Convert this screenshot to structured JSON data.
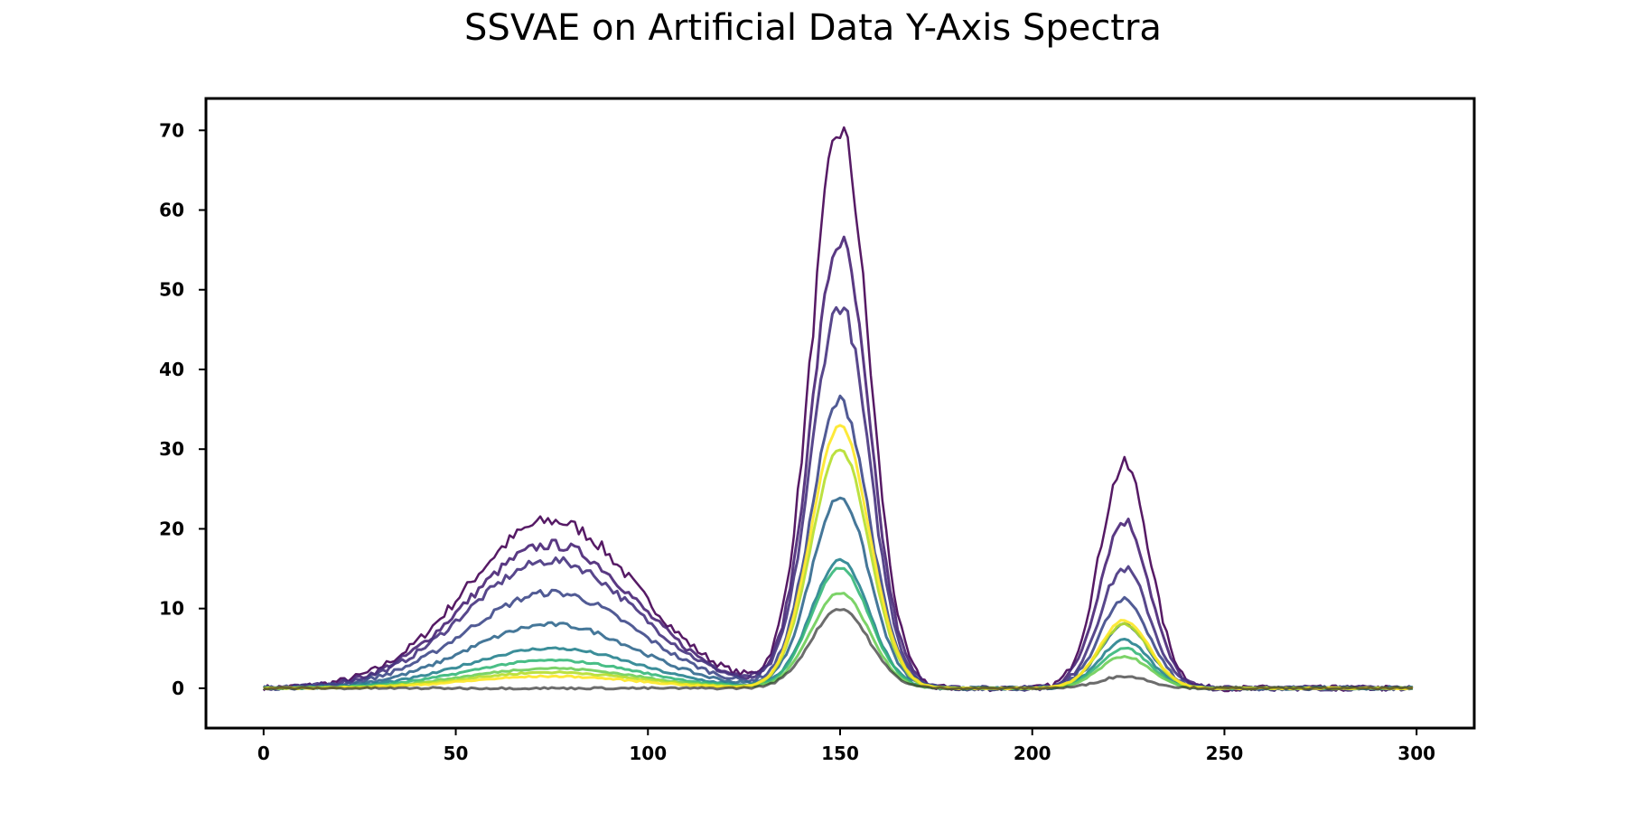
{
  "chart_data": {
    "type": "line",
    "title": "SSVAE on Artificial Data Y-Axis Spectra",
    "xlabel": "",
    "ylabel": "",
    "xlim": [
      -15,
      315
    ],
    "ylim": [
      -5,
      74
    ],
    "x_ticks": [
      0,
      50,
      100,
      150,
      200,
      250,
      300
    ],
    "y_ticks": [
      0,
      10,
      20,
      30,
      40,
      50,
      60,
      70
    ],
    "x_tick_labels": [
      "0",
      "50",
      "100",
      "150",
      "200",
      "250",
      "300"
    ],
    "y_tick_labels": [
      "0",
      "10",
      "20",
      "30",
      "40",
      "50",
      "60",
      "70"
    ],
    "grid": false,
    "legend": "none",
    "x_domain": [
      0,
      299
    ],
    "peaks": [
      {
        "center": 75,
        "width": 22
      },
      {
        "center": 150,
        "width": 7.5
      },
      {
        "center": 224,
        "width": 6.5
      }
    ],
    "series": [
      {
        "color": "#440154",
        "amplitudes": [
          21,
          70,
          28
        ],
        "noise": 1.2
      },
      {
        "color": "#482475",
        "amplitudes": [
          18,
          56,
          21
        ],
        "noise": 1.0
      },
      {
        "color": "#46337f",
        "amplitudes": [
          16,
          48,
          15
        ],
        "noise": 0.9
      },
      {
        "color": "#3e4989",
        "amplitudes": [
          12,
          36,
          11
        ],
        "noise": 0.8
      },
      {
        "color": "#31688e",
        "amplitudes": [
          8,
          24,
          8
        ],
        "noise": 0.6
      },
      {
        "color": "#26828e",
        "amplitudes": [
          5,
          16,
          6
        ],
        "noise": 0.4
      },
      {
        "color": "#35b779",
        "amplitudes": [
          3.5,
          15,
          5
        ],
        "noise": 0.3
      },
      {
        "color": "#6ece58",
        "amplitudes": [
          2.5,
          12,
          4
        ],
        "noise": 0.3
      },
      {
        "color": "#b5de2b",
        "amplitudes": [
          2,
          30,
          8
        ],
        "noise": 0.3
      },
      {
        "color": "#fde725",
        "amplitudes": [
          1.5,
          33,
          8.5
        ],
        "noise": 0.3
      },
      {
        "color": "#2d2d2d",
        "amplitudes": [
          0,
          10,
          1.5
        ],
        "noise": 0.4
      }
    ]
  }
}
